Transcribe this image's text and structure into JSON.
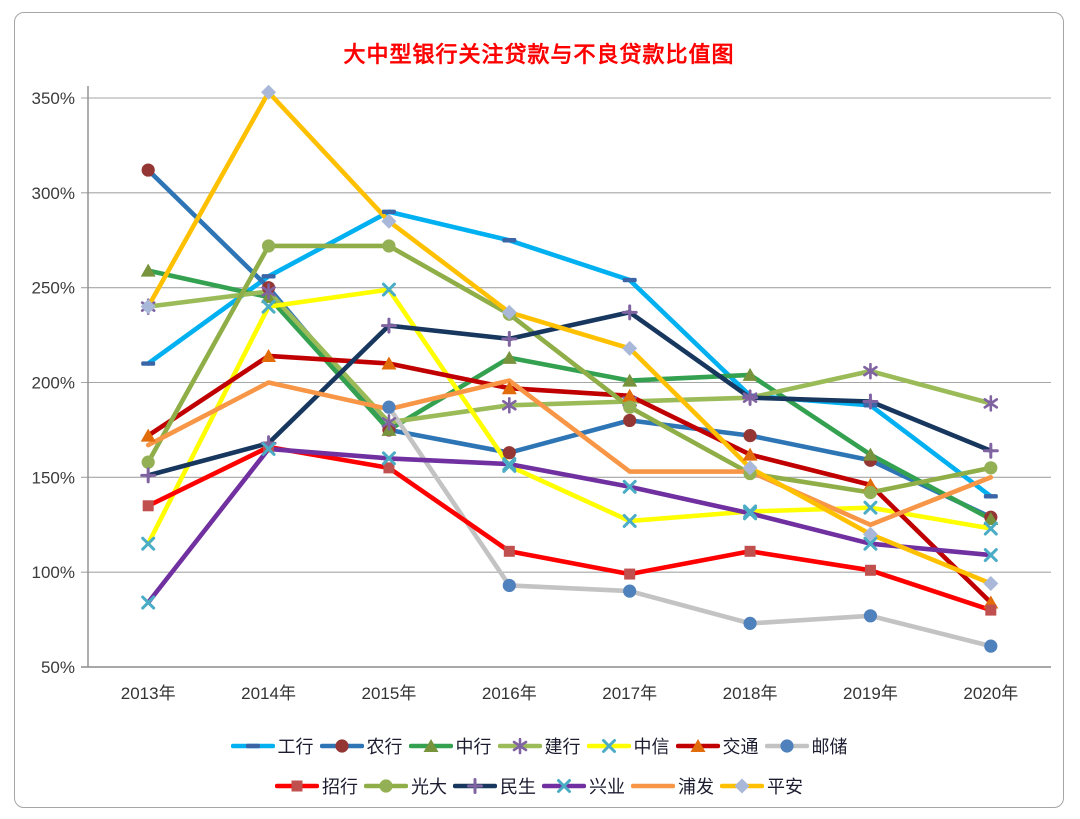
{
  "chart_data": {
    "type": "line",
    "title": "大中型银行关注贷款与不良贷款比值图",
    "title_color": "#FF0000",
    "categories": [
      "2013年",
      "2014年",
      "2015年",
      "2016年",
      "2017年",
      "2018年",
      "2019年",
      "2020年"
    ],
    "xlabel": "",
    "ylabel": "",
    "y_axis": {
      "min": 50,
      "max": 350,
      "step": 50,
      "suffix": "%",
      "tick_labels": [
        "50%",
        "100%",
        "150%",
        "200%",
        "250%",
        "300%",
        "350%"
      ]
    },
    "grid": true,
    "legend_position": "bottom",
    "series": [
      {
        "name": "工行",
        "color": "#00B0F0",
        "marker": "dash",
        "marker_color": "#3A66A7",
        "values": [
          210,
          256,
          290,
          275,
          254,
          193,
          188,
          140
        ]
      },
      {
        "name": "农行",
        "color": "#2E75B6",
        "marker": "circle",
        "marker_color": "#943634",
        "values": [
          312,
          250,
          175,
          163,
          180,
          172,
          159,
          129
        ]
      },
      {
        "name": "中行",
        "color": "#33A150",
        "marker": "triangle",
        "marker_color": "#77933C",
        "values": [
          259,
          245,
          175,
          213,
          201,
          204,
          162,
          128
        ]
      },
      {
        "name": "建行",
        "color": "#9BBB59",
        "marker": "asterisk",
        "marker_color": "#8064A2",
        "values": [
          240,
          248,
          179,
          188,
          190,
          192,
          206,
          189
        ]
      },
      {
        "name": "中信",
        "color": "#FFFF00",
        "marker": "x",
        "marker_color": "#4BACC6",
        "values": [
          115,
          240,
          249,
          156,
          127,
          132,
          134,
          123
        ]
      },
      {
        "name": "交通",
        "color": "#C00000",
        "marker": "triangle",
        "marker_color": "#E36C0A",
        "values": [
          172,
          214,
          210,
          197,
          193,
          162,
          146,
          84
        ]
      },
      {
        "name": "邮储",
        "color": "#C3C3C3",
        "marker": "circle",
        "marker_color": "#4F81BD",
        "values": [
          null,
          null,
          187,
          93,
          90,
          73,
          77,
          61
        ]
      },
      {
        "name": "招行",
        "color": "#FF0000",
        "marker": "square",
        "marker_color": "#C0504D",
        "values": [
          135,
          166,
          155,
          111,
          99,
          111,
          101,
          80
        ]
      },
      {
        "name": "光大",
        "color": "#8FAE47",
        "marker": "circle",
        "marker_color": "#94B054",
        "values": [
          158,
          272,
          272,
          236,
          187,
          152,
          142,
          155
        ]
      },
      {
        "name": "民生",
        "color": "#17375E",
        "marker": "plus",
        "marker_color": "#8064A2",
        "values": [
          151,
          168,
          230,
          223,
          237,
          192,
          190,
          164
        ]
      },
      {
        "name": "兴业",
        "color": "#7030A0",
        "marker": "x",
        "marker_color": "#4BACC6",
        "values": [
          84,
          165,
          160,
          157,
          145,
          131,
          115,
          109
        ]
      },
      {
        "name": "浦发",
        "color": "#F79646",
        "marker": "none",
        "marker_color": "#F79646",
        "values": [
          167,
          200,
          186,
          201,
          153,
          153,
          125,
          150
        ]
      },
      {
        "name": "平安",
        "color": "#FFC000",
        "marker": "diamond",
        "marker_color": "#A9B8D9",
        "values": [
          240,
          353,
          285,
          237,
          218,
          155,
          120,
          94
        ]
      }
    ],
    "legend_rows": [
      [
        0,
        1,
        2,
        3,
        4,
        5,
        6
      ],
      [
        7,
        8,
        9,
        10,
        11,
        12
      ]
    ]
  }
}
